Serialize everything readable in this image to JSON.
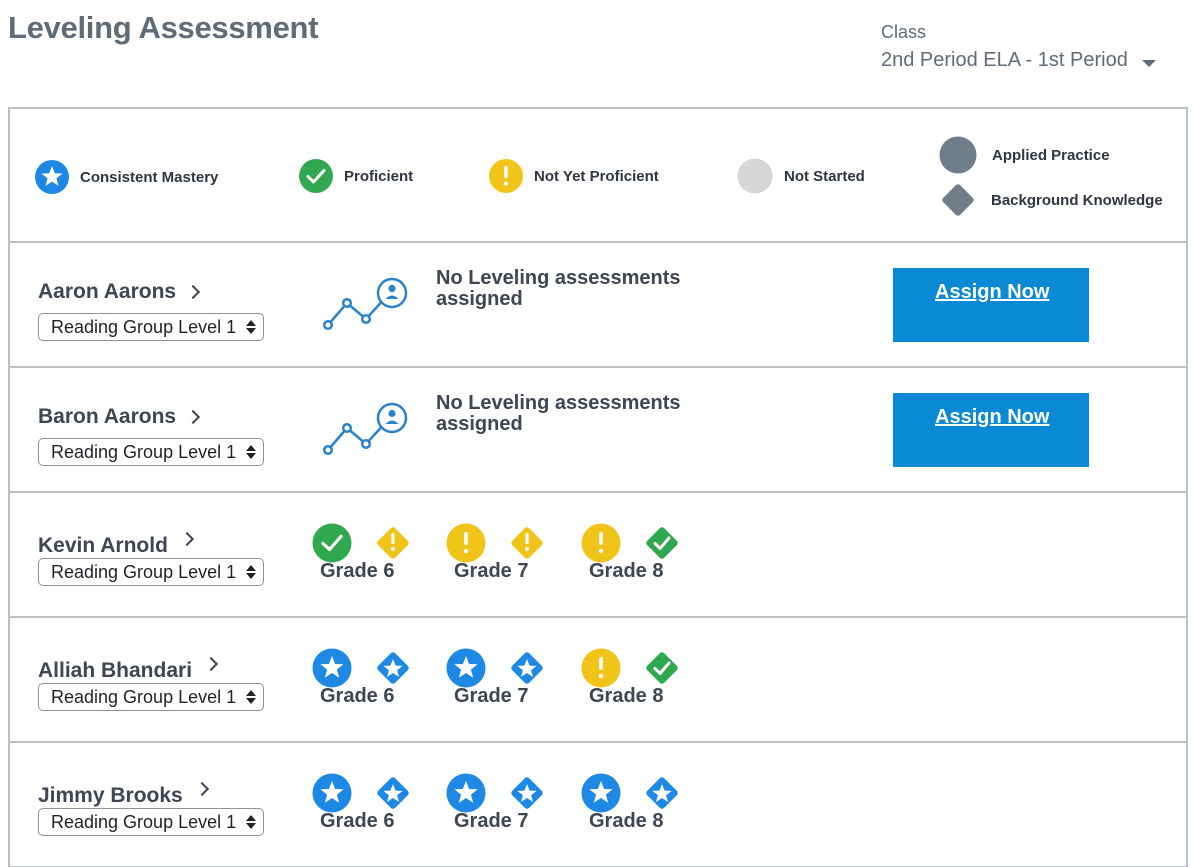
{
  "page": {
    "title": "Leveling Assessment"
  },
  "class_picker": {
    "label": "Class",
    "value": "2nd Period ELA - 1st Period"
  },
  "legend": {
    "consistent_mastery": "Consistent Mastery",
    "proficient": "Proficient",
    "not_yet_proficient": "Not Yet Proficient",
    "not_started": "Not Started",
    "applied_practice": "Applied Practice",
    "background_knowledge": "Background Knowledge"
  },
  "colors": {
    "mastery": "#1e88e5",
    "proficient": "#2fa84f",
    "not_yet": "#f0c419",
    "not_started": "#d6d6d6",
    "shape_key": "#6f7e8a",
    "assign_button": "#0a8ad4"
  },
  "students": [
    {
      "name": "Aaron Aarons",
      "group": "Reading Group Level 1",
      "no_assessment_text": "No Leveling assessments assigned",
      "assign_label": "Assign Now",
      "grades": []
    },
    {
      "name": "Baron Aarons",
      "group": "Reading Group Level 1",
      "no_assessment_text": "No Leveling assessments assigned",
      "assign_label": "Assign Now",
      "grades": []
    },
    {
      "name": "Kevin Arnold",
      "group": "Reading Group Level 1",
      "grades": [
        {
          "label": "Grade 6",
          "applied": "proficient",
          "background": "not-yet"
        },
        {
          "label": "Grade 7",
          "applied": "not-yet",
          "background": "not-yet"
        },
        {
          "label": "Grade 8",
          "applied": "not-yet",
          "background": "proficient"
        }
      ]
    },
    {
      "name": "Alliah Bhandari",
      "group": "Reading Group Level 1",
      "grades": [
        {
          "label": "Grade 6",
          "applied": "mastery",
          "background": "mastery"
        },
        {
          "label": "Grade 7",
          "applied": "mastery",
          "background": "mastery"
        },
        {
          "label": "Grade 8",
          "applied": "not-yet",
          "background": "proficient"
        }
      ]
    },
    {
      "name": "Jimmy Brooks",
      "group": "Reading Group Level 1",
      "grades": [
        {
          "label": "Grade 6",
          "applied": "mastery",
          "background": "mastery"
        },
        {
          "label": "Grade 7",
          "applied": "mastery",
          "background": "mastery"
        },
        {
          "label": "Grade 8",
          "applied": "mastery",
          "background": "mastery"
        }
      ]
    }
  ]
}
